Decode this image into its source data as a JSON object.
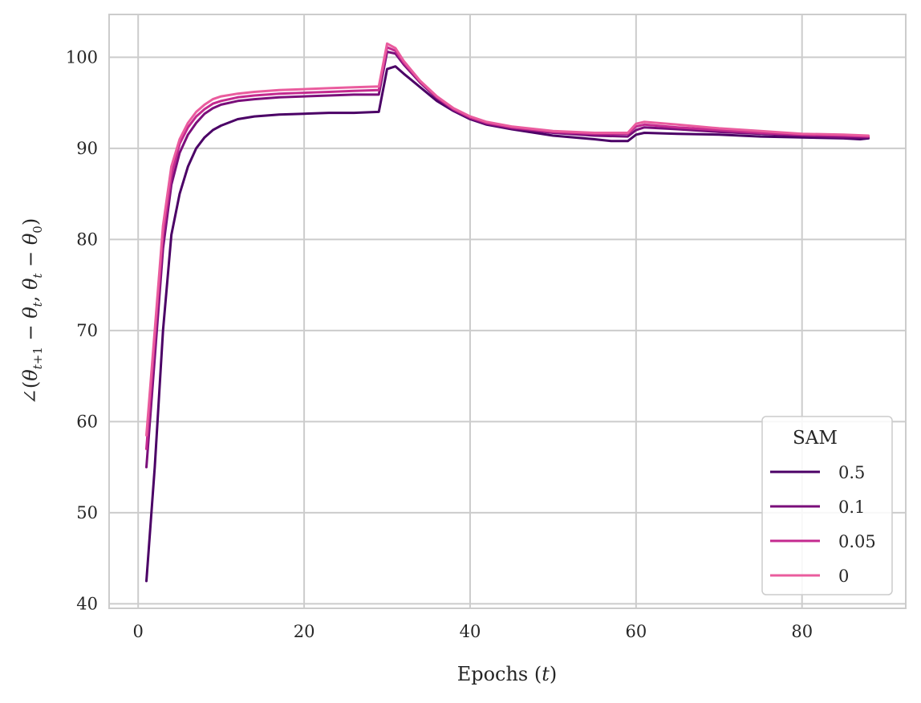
{
  "chart_data": {
    "type": "line",
    "xlabel": "Epochs (t)",
    "ylabel": "∠(θ_{t+1} − θ_t, θ_t − θ_0)",
    "xlim": [
      -3.5,
      92.5
    ],
    "ylim": [
      39.5,
      104.7
    ],
    "xticks": [
      0,
      20,
      40,
      60,
      80
    ],
    "yticks": [
      40,
      50,
      60,
      70,
      80,
      90,
      100
    ],
    "grid": true,
    "legend": {
      "title": "SAM",
      "position": "bottom-right"
    },
    "series": [
      {
        "name": "0.5",
        "color": "#4b0066",
        "points": [
          [
            1,
            42.5
          ],
          [
            2,
            55
          ],
          [
            3,
            70
          ],
          [
            4,
            80.5
          ],
          [
            5,
            85
          ],
          [
            6,
            88
          ],
          [
            7,
            90
          ],
          [
            8,
            91.2
          ],
          [
            9,
            92
          ],
          [
            10,
            92.5
          ],
          [
            12,
            93.2
          ],
          [
            14,
            93.5
          ],
          [
            17,
            93.7
          ],
          [
            20,
            93.8
          ],
          [
            23,
            93.9
          ],
          [
            26,
            93.9
          ],
          [
            29,
            94
          ],
          [
            30,
            98.7
          ],
          [
            31,
            99
          ],
          [
            32,
            98.2
          ],
          [
            34,
            96.7
          ],
          [
            36,
            95.2
          ],
          [
            38,
            94.1
          ],
          [
            40,
            93.2
          ],
          [
            42,
            92.6
          ],
          [
            45,
            92.1
          ],
          [
            50,
            91.4
          ],
          [
            55,
            91
          ],
          [
            57,
            90.8
          ],
          [
            59,
            90.8
          ],
          [
            60,
            91.5
          ],
          [
            61,
            91.7
          ],
          [
            65,
            91.6
          ],
          [
            70,
            91.5
          ],
          [
            75,
            91.3
          ],
          [
            80,
            91.2
          ],
          [
            85,
            91.1
          ],
          [
            87,
            91
          ],
          [
            88,
            91.1
          ]
        ]
      },
      {
        "name": "0.1",
        "color": "#7a0e7a",
        "points": [
          [
            1,
            55
          ],
          [
            2,
            67
          ],
          [
            3,
            79
          ],
          [
            4,
            86
          ],
          [
            5,
            89.5
          ],
          [
            6,
            91.5
          ],
          [
            7,
            92.8
          ],
          [
            8,
            93.8
          ],
          [
            9,
            94.4
          ],
          [
            10,
            94.8
          ],
          [
            12,
            95.2
          ],
          [
            14,
            95.4
          ],
          [
            17,
            95.6
          ],
          [
            20,
            95.7
          ],
          [
            23,
            95.8
          ],
          [
            26,
            95.9
          ],
          [
            29,
            95.9
          ],
          [
            30,
            100.6
          ],
          [
            31,
            100.4
          ],
          [
            32,
            99.2
          ],
          [
            34,
            97.2
          ],
          [
            36,
            95.5
          ],
          [
            38,
            94.2
          ],
          [
            40,
            93.3
          ],
          [
            42,
            92.7
          ],
          [
            45,
            92.2
          ],
          [
            50,
            91.7
          ],
          [
            55,
            91.4
          ],
          [
            59,
            91.3
          ],
          [
            60,
            92
          ],
          [
            61,
            92.3
          ],
          [
            65,
            92.1
          ],
          [
            70,
            91.8
          ],
          [
            75,
            91.6
          ],
          [
            80,
            91.4
          ],
          [
            85,
            91.2
          ],
          [
            88,
            91.2
          ]
        ]
      },
      {
        "name": "0.05",
        "color": "#c42a8f",
        "points": [
          [
            1,
            57
          ],
          [
            2,
            69
          ],
          [
            3,
            80.5
          ],
          [
            4,
            87
          ],
          [
            5,
            90.5
          ],
          [
            6,
            92.3
          ],
          [
            7,
            93.5
          ],
          [
            8,
            94.3
          ],
          [
            9,
            94.9
          ],
          [
            10,
            95.2
          ],
          [
            12,
            95.6
          ],
          [
            14,
            95.8
          ],
          [
            17,
            96
          ],
          [
            20,
            96.1
          ],
          [
            23,
            96.2
          ],
          [
            26,
            96.3
          ],
          [
            29,
            96.4
          ],
          [
            30,
            101.1
          ],
          [
            31,
            100.7
          ],
          [
            32,
            99.4
          ],
          [
            34,
            97.3
          ],
          [
            36,
            95.6
          ],
          [
            38,
            94.3
          ],
          [
            40,
            93.4
          ],
          [
            42,
            92.8
          ],
          [
            45,
            92.3
          ],
          [
            50,
            91.8
          ],
          [
            55,
            91.6
          ],
          [
            59,
            91.6
          ],
          [
            60,
            92.4
          ],
          [
            61,
            92.6
          ],
          [
            65,
            92.3
          ],
          [
            70,
            92
          ],
          [
            75,
            91.7
          ],
          [
            80,
            91.5
          ],
          [
            85,
            91.4
          ],
          [
            88,
            91.3
          ]
        ]
      },
      {
        "name": "0",
        "color": "#ea5c9e",
        "points": [
          [
            1,
            58.5
          ],
          [
            2,
            70
          ],
          [
            3,
            81.5
          ],
          [
            4,
            88
          ],
          [
            5,
            91
          ],
          [
            6,
            92.8
          ],
          [
            7,
            94
          ],
          [
            8,
            94.8
          ],
          [
            9,
            95.4
          ],
          [
            10,
            95.7
          ],
          [
            12,
            96
          ],
          [
            14,
            96.2
          ],
          [
            17,
            96.4
          ],
          [
            20,
            96.5
          ],
          [
            23,
            96.6
          ],
          [
            26,
            96.7
          ],
          [
            29,
            96.8
          ],
          [
            30,
            101.5
          ],
          [
            31,
            101
          ],
          [
            32,
            99.6
          ],
          [
            34,
            97.4
          ],
          [
            36,
            95.7
          ],
          [
            38,
            94.4
          ],
          [
            40,
            93.5
          ],
          [
            42,
            92.9
          ],
          [
            45,
            92.4
          ],
          [
            50,
            91.9
          ],
          [
            55,
            91.7
          ],
          [
            59,
            91.7
          ],
          [
            60,
            92.7
          ],
          [
            61,
            92.9
          ],
          [
            65,
            92.6
          ],
          [
            70,
            92.2
          ],
          [
            75,
            91.9
          ],
          [
            80,
            91.6
          ],
          [
            85,
            91.5
          ],
          [
            88,
            91.4
          ]
        ]
      }
    ]
  }
}
